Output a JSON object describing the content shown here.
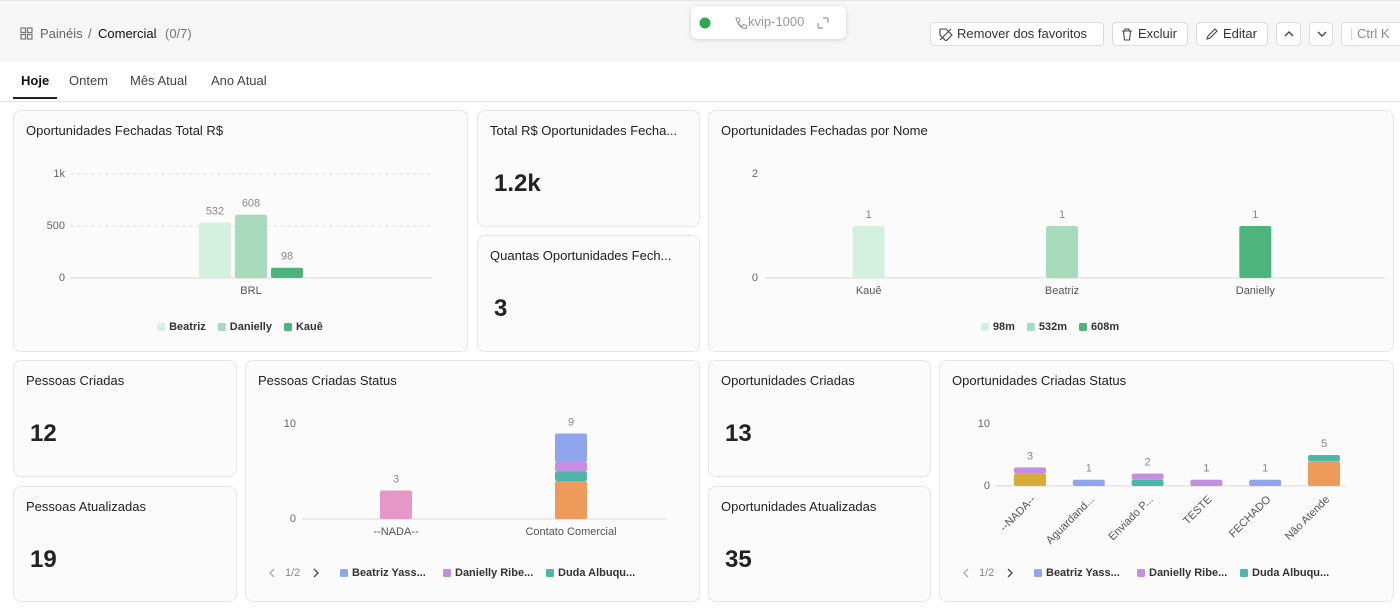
{
  "header": {
    "breadcrumb": [
      "Painéis",
      "Comercial"
    ],
    "separator": "/",
    "count": "(0/7)",
    "extension": "kvip-1000",
    "buttons": [
      "Remover dos favoritos",
      "Excluir",
      "Editar"
    ],
    "search": "Ctrl K"
  },
  "tabs": [
    "Hoje",
    "Ontem",
    "Mês Atual",
    "Ano Atual"
  ],
  "kpis": [
    {
      "title": "Total R$ Oportunidades Fecha...",
      "value": "1.2k"
    },
    {
      "title": "Quantas Oportunidades Fech...",
      "value": 3
    },
    {
      "title": "Pessoas Criadas",
      "value": 12
    },
    {
      "title": "Pessoas Atualizadas",
      "value": 19
    },
    {
      "title": "Oportunidades Criadas",
      "value": 13
    },
    {
      "title": "Oportunidades Atualizadas",
      "value": 35
    }
  ],
  "chart_data": [
    {
      "type": "bar",
      "title": "Oportunidades Fechadas Total R$",
      "categories": [
        "BRL"
      ],
      "series": [
        {
          "name": "Beatriz",
          "color": "#d4f0df",
          "values": [
            532
          ]
        },
        {
          "name": "Danielly",
          "color": "#a8dbbb",
          "values": [
            608
          ]
        },
        {
          "name": "Kauê",
          "color": "#4db57c",
          "values": [
            98
          ]
        }
      ],
      "ylim": [
        0,
        1000
      ],
      "yticks": [
        0,
        500,
        {
          "value": 1000,
          "label": "1k"
        }
      ],
      "grid": true,
      "show_values": true
    },
    {
      "type": "bar",
      "stacked": true,
      "title": "Oportunidades Fechadas por Nome",
      "categories": [
        "Kauê",
        "Beatriz",
        "Danielly"
      ],
      "series": [
        {
          "name": "98m",
          "color": "#d4f0df",
          "values": [
            1,
            null,
            null
          ]
        },
        {
          "name": "532m",
          "color": "#a8dbbb",
          "values": [
            null,
            1,
            null
          ]
        },
        {
          "name": "608m",
          "color": "#4db57c",
          "values": [
            null,
            null,
            1
          ]
        }
      ],
      "ylim": [
        0,
        2
      ],
      "yticks": [
        0,
        2
      ],
      "show_values": true
    },
    {
      "type": "bar",
      "stacked": true,
      "title": "Pessoas Criadas Status",
      "categories": [
        "--NADA--",
        "Contato Comercial"
      ],
      "series": [
        {
          "name": "Beatriz Yass...",
          "color": "#8fa6ee",
          "values": [
            null,
            3
          ]
        },
        {
          "name": "Danielly Ribe...",
          "color": "#c48fe0",
          "values": [
            null,
            1
          ]
        },
        {
          "name": "Duda Albuqu...",
          "color": "#4db6a9",
          "values": [
            null,
            1
          ]
        },
        {
          "color": "#e597c8",
          "values": [
            3,
            null
          ]
        },
        {
          "color": "#ee9a5a",
          "values": [
            null,
            4
          ]
        }
      ],
      "total_labels": [
        3,
        9
      ],
      "ylim": [
        0,
        10
      ],
      "yticks": [
        0,
        10
      ],
      "legend_page": "1/2"
    },
    {
      "type": "bar",
      "stacked": true,
      "rotated_labels": true,
      "title": "Oportunidades Criadas Status",
      "categories": [
        "--NADA--",
        "Aguardand...",
        "Enviado P...",
        "TESTE",
        "FECHADO",
        "Não Atende"
      ],
      "series": [
        {
          "name": "Beatriz Yass...",
          "color": "#8fa6ee",
          "values": [
            null,
            1,
            null,
            null,
            1,
            null
          ]
        },
        {
          "name": "Danielly Ribe...",
          "color": "#c48fe0",
          "values": [
            1,
            null,
            1,
            1,
            null,
            null
          ]
        },
        {
          "name": "Duda Albuqu...",
          "color": "#4db6a9",
          "values": [
            null,
            null,
            1,
            null,
            null,
            1
          ]
        },
        {
          "color": "#ee9a5a",
          "values": [
            null,
            null,
            null,
            null,
            null,
            4
          ]
        },
        {
          "color": "#d7ac3a",
          "values": [
            2,
            null,
            null,
            null,
            null,
            null
          ]
        }
      ],
      "total_labels": [
        3,
        1,
        2,
        1,
        1,
        5
      ],
      "ylim": [
        0,
        10
      ],
      "yticks": [
        0,
        10
      ],
      "legend_page": "1/2"
    }
  ]
}
